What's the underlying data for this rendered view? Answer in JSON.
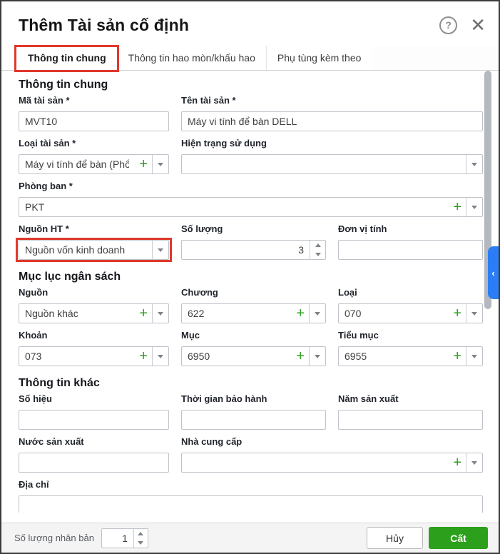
{
  "dialog": {
    "title": "Thêm Tài sản cố định"
  },
  "header_icons": {
    "help": "?",
    "close": "✕"
  },
  "tabs": [
    {
      "label": "Thông tin chung",
      "active": true
    },
    {
      "label": "Thông tin hao mòn/khấu hao",
      "active": false
    },
    {
      "label": "Phụ tùng kèm theo",
      "active": false
    }
  ],
  "form": {
    "section_general": "Thông tin chung",
    "ma_tai_san": {
      "label": "Mã tài sản *",
      "value": "MVT10"
    },
    "ten_tai_san": {
      "label": "Tên tài sản *",
      "value": "Máy vi tính để bàn DELL"
    },
    "loai_tai_san": {
      "label": "Loại tài sản *",
      "value": "Máy vi tính để bàn (Phổ"
    },
    "hien_trang_su_dung": {
      "label": "Hiện trạng sử dụng",
      "value": ""
    },
    "phong_ban": {
      "label": "Phòng ban *",
      "value": "PKT"
    },
    "nguon_ht": {
      "label": "Nguồn HT *",
      "value": "Nguồn vốn kinh doanh"
    },
    "so_luong": {
      "label": "Số lượng",
      "value": "3"
    },
    "don_vi_tinh": {
      "label": "Đơn vị tính",
      "value": ""
    },
    "section_budget": "Mục lục ngân sách",
    "nguon": {
      "label": "Nguồn",
      "value": "Nguồn khác"
    },
    "chuong": {
      "label": "Chương",
      "value": "622"
    },
    "loai": {
      "label": "Loại",
      "value": "070"
    },
    "khoan": {
      "label": "Khoản",
      "value": "073"
    },
    "muc": {
      "label": "Mục",
      "value": "6950"
    },
    "tieu_muc": {
      "label": "Tiểu mục",
      "value": "6955"
    },
    "section_other": "Thông tin khác",
    "so_hieu": {
      "label": "Số hiệu",
      "value": ""
    },
    "thoi_gian_bao_hanh": {
      "label": "Thời gian bảo hành",
      "value": ""
    },
    "nam_san_xuat": {
      "label": "Năm sản xuất",
      "value": ""
    },
    "nuoc_san_xuat": {
      "label": "Nước sản xuất",
      "value": ""
    },
    "nha_cung_cap": {
      "label": "Nhà cung cấp",
      "value": ""
    },
    "dia_chi": {
      "label": "Địa chỉ",
      "value": ""
    }
  },
  "side_tab": {
    "chevron": "‹"
  },
  "footer": {
    "replicate_label": "Số lượng nhân bản",
    "replicate_value": "1",
    "cancel_label": "Hủy",
    "save_label": "Cất"
  },
  "colors": {
    "accent_green": "#2ca01c",
    "annotation_red": "#e0382c",
    "side_tab_blue": "#2b7df7"
  }
}
